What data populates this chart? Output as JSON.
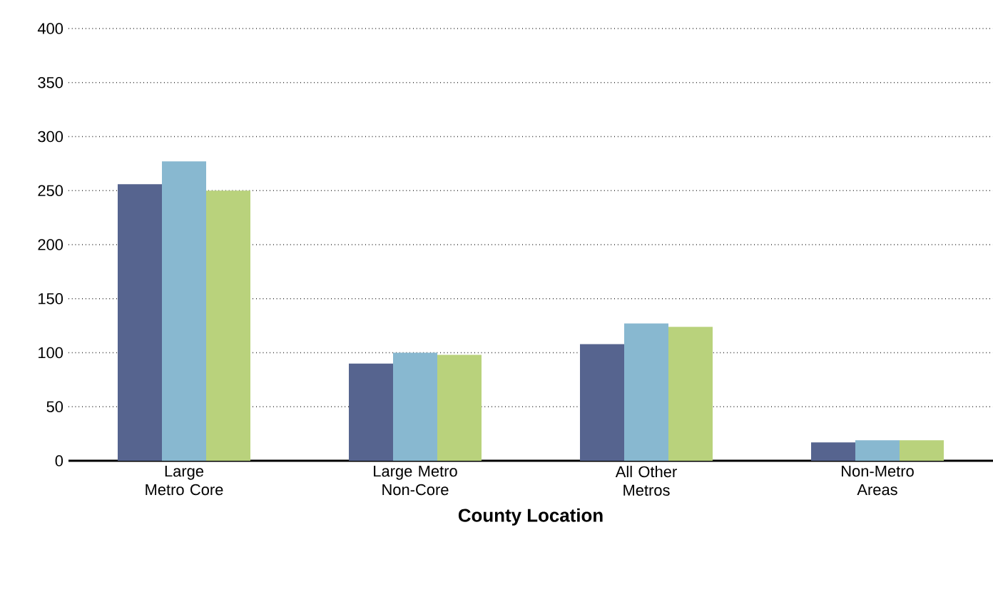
{
  "chart_data": {
    "type": "bar",
    "xlabel": "County Location",
    "categories": [
      "Large Metro Core",
      "Large Metro Non-Core",
      "All Other Metros",
      "Non-Metro Areas"
    ],
    "series": [
      {
        "color": "#56648f",
        "values": [
          256,
          90,
          108,
          17
        ]
      },
      {
        "color": "#88b8d0",
        "values": [
          277,
          100,
          127,
          19
        ]
      },
      {
        "color": "#b9d27c",
        "values": [
          250,
          98,
          124,
          19
        ]
      }
    ],
    "ylim": [
      0,
      400
    ],
    "yticks": [
      0,
      50,
      100,
      150,
      200,
      250,
      300,
      350,
      400
    ],
    "grid": "y"
  }
}
